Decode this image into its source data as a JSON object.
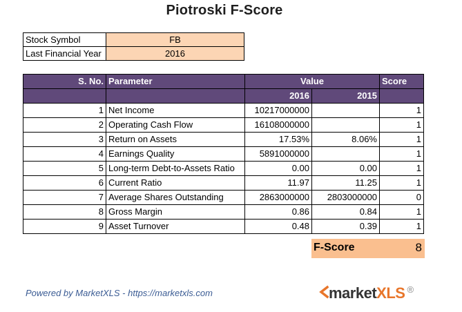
{
  "title": "Piotroski F-Score",
  "info": {
    "stock_symbol_label": "Stock Symbol",
    "stock_symbol_value": "FB",
    "financial_year_label": "Last Financial Year",
    "financial_year_value": "2016"
  },
  "table": {
    "headers": {
      "no": "S. No.",
      "parameter": "Parameter",
      "value": "Value",
      "score": "Score",
      "year1": "2016",
      "year2": "2015"
    },
    "rows": [
      {
        "no": "1",
        "parameter": "Net Income",
        "v2016": "10217000000",
        "v2015": "",
        "score": "1"
      },
      {
        "no": "2",
        "parameter": "Operating Cash Flow",
        "v2016": "16108000000",
        "v2015": "",
        "score": "1"
      },
      {
        "no": "3",
        "parameter": "Return on Assets",
        "v2016": "17.53%",
        "v2015": "8.06%",
        "score": "1"
      },
      {
        "no": "4",
        "parameter": "Earnings Quality",
        "v2016": "5891000000",
        "v2015": "",
        "score": "1"
      },
      {
        "no": "5",
        "parameter": "Long-term Debt-to-Assets Ratio",
        "v2016": "0.00",
        "v2015": "0.00",
        "score": "1"
      },
      {
        "no": "6",
        "parameter": "Current Ratio",
        "v2016": "11.97",
        "v2015": "11.25",
        "score": "1"
      },
      {
        "no": "7",
        "parameter": "Average Shares Outstanding",
        "v2016": "2863000000",
        "v2015": "2803000000",
        "score": "0"
      },
      {
        "no": "8",
        "parameter": "Gross Margin",
        "v2016": "0.86",
        "v2015": "0.84",
        "score": "1"
      },
      {
        "no": "9",
        "parameter": "Asset Turnover",
        "v2016": "0.48",
        "v2015": "0.39",
        "score": "1"
      }
    ]
  },
  "fscore": {
    "label": "F-Score",
    "value": "8"
  },
  "footer": {
    "powered_by": "Powered by MarketXLS - https://marketxls.com",
    "logo_main": "market",
    "logo_accent": "XLS",
    "logo_registered": "®"
  },
  "colors": {
    "header_purple": "#60497a",
    "input_peach": "#fcd5b4",
    "fscore_orange": "#fabf8f",
    "link_blue": "#3b5c94",
    "logo_orange": "#e8762b"
  }
}
